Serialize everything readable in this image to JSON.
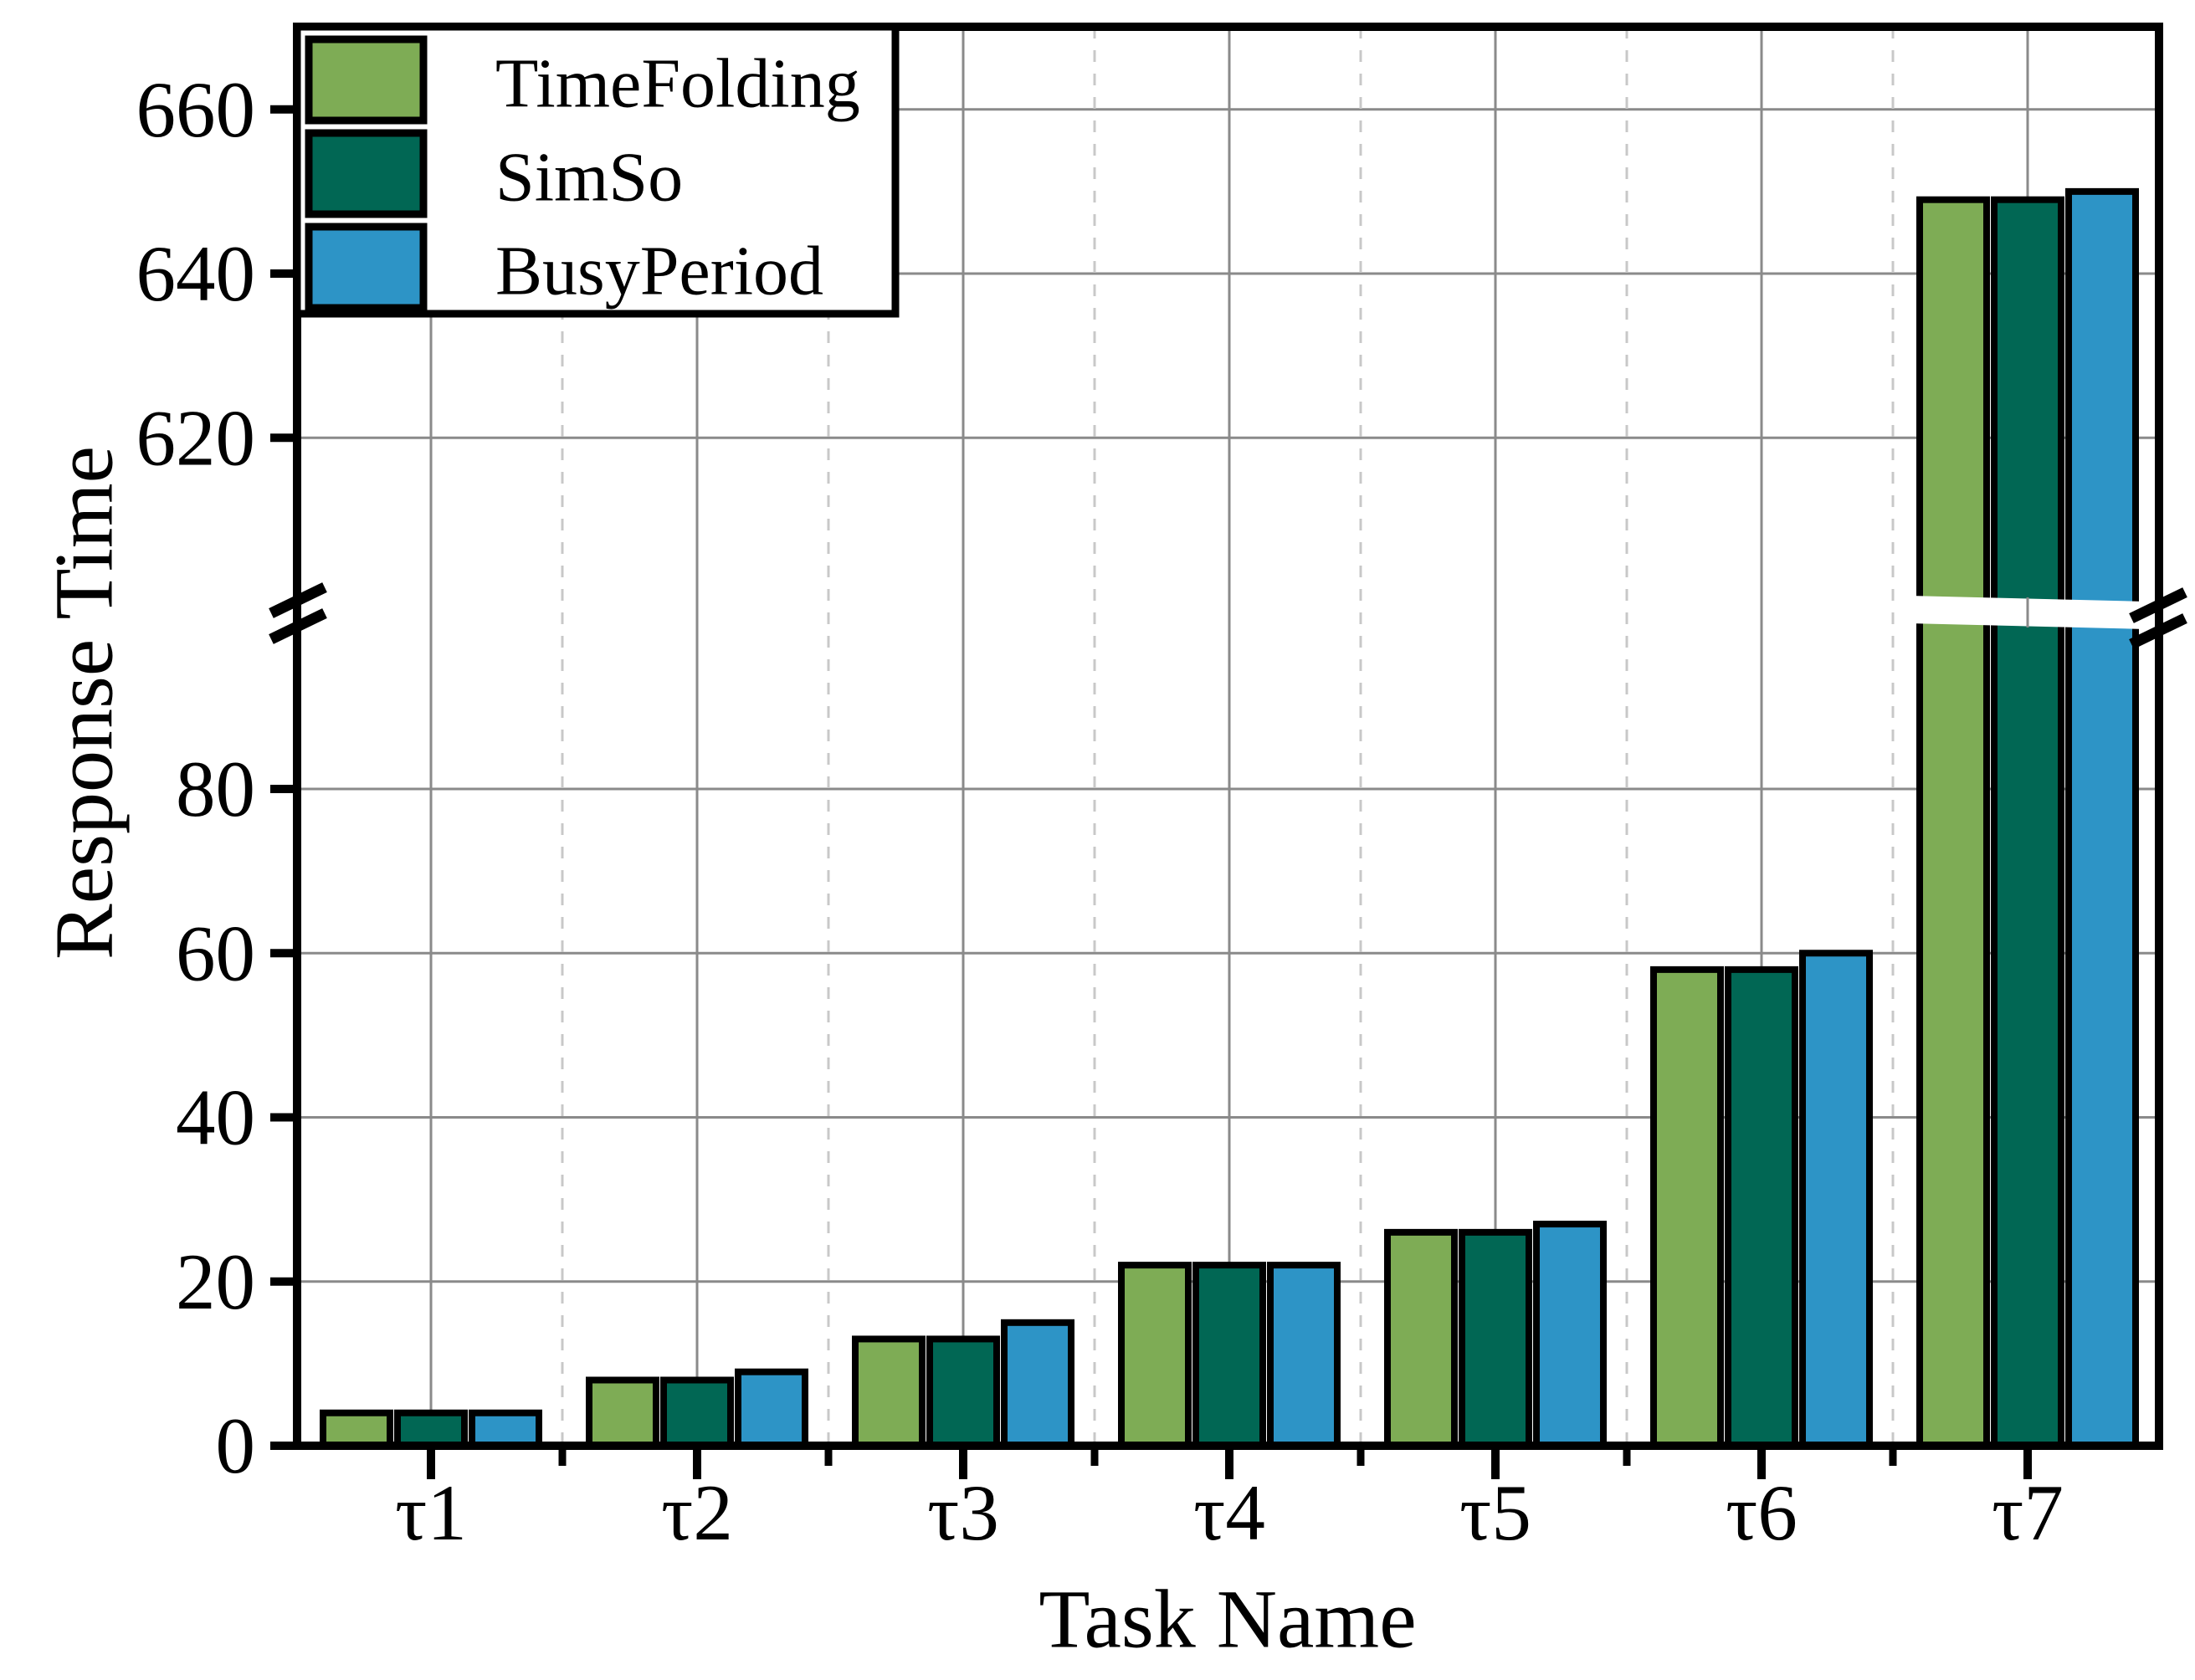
{
  "chart_data": {
    "type": "bar",
    "title": "",
    "xlabel": "Task Name",
    "ylabel": "Response Time",
    "categories": [
      "τ1",
      "τ2",
      "τ3",
      "τ4",
      "τ5",
      "τ6",
      "τ7"
    ],
    "series": [
      {
        "name": "TimeFolding",
        "color": "#7EAC55",
        "values": [
          4,
          8,
          13,
          22,
          26,
          58,
          649
        ]
      },
      {
        "name": "SimSo",
        "color": "#016754",
        "values": [
          4,
          8,
          13,
          22,
          26,
          58,
          649
        ]
      },
      {
        "name": "BusyPeriod",
        "color": "#2D94C6",
        "values": [
          4,
          9,
          15,
          22,
          27,
          60,
          650
        ]
      }
    ],
    "y_axis": {
      "lower_ticks": [
        0,
        20,
        40,
        60,
        80
      ],
      "upper_ticks": [
        620,
        640,
        660
      ],
      "axis_break": true,
      "lower_range": [
        0,
        113
      ],
      "upper_range": [
        607,
        670
      ]
    },
    "legend_position": "upper-left",
    "grid": true,
    "colors": {
      "bar_edge": "#000000",
      "grid_solid": "#8a8a8a",
      "grid_dashed": "#c8c8c8",
      "frame": "#000000"
    }
  }
}
